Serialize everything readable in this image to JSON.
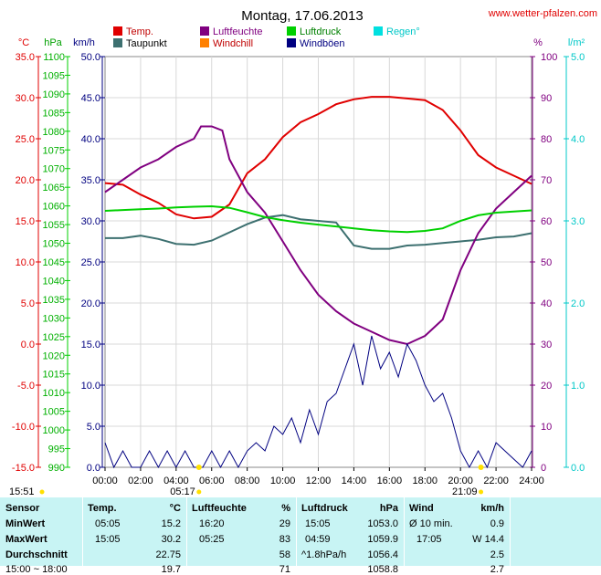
{
  "header": {
    "title": "Montag, 17.06.2013",
    "site": "www.wetter-pfalzen.com",
    "footer_left_time": "15:51"
  },
  "legend": [
    {
      "label": "Temp.",
      "color": "#e00000"
    },
    {
      "label": "Luftfeuchte",
      "color": "#800080"
    },
    {
      "label": "Luftdruck",
      "color": "#00d000"
    },
    {
      "label": "Regen°",
      "color": "#00e0e0"
    },
    {
      "label": "Taupunkt",
      "color": "#3d7070"
    },
    {
      "label": "Windchill",
      "color": "#ff8000"
    },
    {
      "label": "Windböen",
      "color": "#000080"
    }
  ],
  "units": {
    "celsius": "°C",
    "hpa": "hPa",
    "kmh": "km/h",
    "percent": "%",
    "rain": "l/m²"
  },
  "sun": {
    "sunrise": "05:17",
    "sunset": "21:09"
  },
  "chart_data": {
    "type": "line",
    "title": "Montag, 17.06.2013",
    "x_ticks": [
      "00:00",
      "02:00",
      "04:00",
      "06:00",
      "08:00",
      "10:00",
      "12:00",
      "14:00",
      "16:00",
      "18:00",
      "20:00",
      "22:00",
      "24:00"
    ],
    "axes": {
      "temperature": {
        "unit": "°C",
        "range": [
          -15,
          35
        ],
        "ticks": [
          "35.0",
          "30.0",
          "25.0",
          "20.0",
          "15.0",
          "10.0",
          "5.0",
          "0.0",
          "-5.0",
          "-10.0",
          "-15.0"
        ]
      },
      "pressure": {
        "unit": "hPa",
        "range": [
          990,
          1100
        ],
        "ticks": [
          "1100",
          "1095",
          "1090",
          "1085",
          "1080",
          "1075",
          "1070",
          "1065",
          "1060",
          "1055",
          "1050",
          "1045",
          "1040",
          "1035",
          "1030",
          "1025",
          "1020",
          "1015",
          "1010",
          "1005",
          "1000",
          "995",
          "990"
        ]
      },
      "wind": {
        "unit": "km/h",
        "range": [
          0,
          50
        ],
        "ticks": [
          "50.0",
          "45.0",
          "40.0",
          "35.0",
          "30.0",
          "25.0",
          "20.0",
          "15.0",
          "10.0",
          "5.0",
          "0.0"
        ]
      },
      "humidity": {
        "unit": "%",
        "range": [
          0,
          100
        ],
        "ticks": [
          "100",
          "90",
          "80",
          "70",
          "60",
          "50",
          "40",
          "30",
          "20",
          "10",
          "0"
        ]
      },
      "rain": {
        "unit": "l/m²",
        "range": [
          0,
          5
        ],
        "ticks": [
          "5.0",
          "4.0",
          "3.0",
          "2.0",
          "1.0",
          "0.0"
        ]
      }
    },
    "series": [
      {
        "name": "Temp.",
        "axis": "temperature",
        "color": "#e00000",
        "x": [
          0,
          1,
          2,
          3,
          4,
          5,
          6,
          7,
          8,
          9,
          10,
          11,
          12,
          13,
          14,
          15,
          16,
          17,
          18,
          19,
          20,
          21,
          22,
          23,
          24
        ],
        "y": [
          19.6,
          19.4,
          18.2,
          17.2,
          15.8,
          15.3,
          15.5,
          17.0,
          20.8,
          22.5,
          25.2,
          27.0,
          28.0,
          29.2,
          29.8,
          30.1,
          30.1,
          29.9,
          29.7,
          28.5,
          26.0,
          23.0,
          21.5,
          20.5,
          19.5
        ]
      },
      {
        "name": "Taupunkt",
        "axis": "temperature",
        "color": "#3d7070",
        "x": [
          0,
          1,
          2,
          3,
          4,
          5,
          6,
          7,
          8,
          9,
          10,
          11,
          12,
          13,
          14,
          15,
          16,
          17,
          18,
          19,
          20,
          21,
          22,
          23,
          24
        ],
        "y": [
          12.9,
          12.9,
          13.2,
          12.8,
          12.2,
          12.1,
          12.6,
          13.6,
          14.6,
          15.4,
          15.7,
          15.2,
          15.0,
          14.8,
          12.0,
          11.6,
          11.6,
          12.0,
          12.1,
          12.3,
          12.5,
          12.7,
          13.0,
          13.1,
          13.5
        ]
      },
      {
        "name": "Luftfeuchte",
        "axis": "humidity",
        "color": "#800080",
        "x": [
          0,
          1,
          2,
          3,
          4,
          5,
          5.4,
          6,
          6.6,
          7,
          8,
          9,
          10,
          11,
          12,
          13,
          14,
          15,
          16,
          17,
          18,
          19,
          20,
          21,
          22,
          23,
          24
        ],
        "y": [
          67,
          70,
          73,
          75,
          78,
          80,
          83,
          83,
          82,
          75,
          67,
          62,
          55,
          48,
          42,
          38,
          35,
          33,
          31,
          30,
          32,
          36,
          48,
          57,
          63,
          67,
          71
        ]
      },
      {
        "name": "Luftdruck",
        "axis": "pressure",
        "color": "#00d000",
        "x": [
          0,
          1,
          2,
          3,
          4,
          5,
          6,
          7,
          8,
          9,
          10,
          11,
          12,
          13,
          14,
          15,
          16,
          17,
          18,
          19,
          20,
          21,
          22,
          23,
          24
        ],
        "y": [
          1058.7,
          1058.9,
          1059.1,
          1059.3,
          1059.6,
          1059.8,
          1059.9,
          1059.5,
          1058.3,
          1057.0,
          1056.2,
          1055.5,
          1055.0,
          1054.5,
          1054.0,
          1053.5,
          1053.2,
          1053.0,
          1053.3,
          1054.0,
          1056.0,
          1057.5,
          1058.2,
          1058.5,
          1058.8
        ]
      },
      {
        "name": "Windböen",
        "axis": "wind",
        "color": "#000080",
        "x": [
          0,
          0.5,
          1,
          1.5,
          2,
          2.5,
          3,
          3.5,
          4,
          4.5,
          5,
          5.5,
          6,
          6.5,
          7,
          7.5,
          8,
          8.5,
          9,
          9.5,
          10,
          10.5,
          11,
          11.5,
          12,
          12.5,
          13,
          13.5,
          14,
          14.5,
          15,
          15.5,
          16,
          16.5,
          17,
          17.5,
          18,
          18.5,
          19,
          19.5,
          20,
          20.5,
          21,
          21.5,
          22,
          22.5,
          23,
          23.5,
          24
        ],
        "y": [
          3,
          0,
          2,
          0,
          0,
          2,
          0,
          2,
          0,
          2,
          0,
          0,
          2,
          0,
          2,
          0,
          2,
          3,
          2,
          5,
          4,
          6,
          3,
          7,
          4,
          8,
          9,
          12,
          15,
          10,
          16,
          12,
          14,
          11,
          15,
          13,
          10,
          8,
          9,
          6,
          2,
          0,
          2,
          0,
          3,
          2,
          1,
          0,
          2
        ]
      }
    ]
  },
  "stats": {
    "sensor_header": "Sensor",
    "row_labels": [
      "MinWert",
      "MaxWert",
      "Durchschnitt",
      "15:00 ~ 18:00"
    ],
    "temp": {
      "header": "Temp.",
      "unit": "°C",
      "rows": [
        {
          "time": "05:05",
          "value": "15.2"
        },
        {
          "time": "15:05",
          "value": "30.2"
        },
        {
          "time": "",
          "value": "22.75"
        },
        {
          "time": "",
          "value": "19.7"
        }
      ]
    },
    "humidity": {
      "header": "Luftfeuchte",
      "unit": "%",
      "rows": [
        {
          "time": "16:20",
          "value": "29"
        },
        {
          "time": "05:25",
          "value": "83"
        },
        {
          "time": "",
          "value": "58"
        },
        {
          "time": "",
          "value": "71"
        }
      ]
    },
    "pressure": {
      "header": "Luftdruck",
      "unit": "hPa",
      "rows": [
        {
          "time": "15:05",
          "value": "1053.0"
        },
        {
          "time": "04:59",
          "value": "1059.9"
        },
        {
          "time": "^1.8hPa/h",
          "value": "1056.4"
        },
        {
          "time": "",
          "value": "1058.8"
        }
      ]
    },
    "wind": {
      "header": "Wind",
      "unit": "km/h",
      "rows": [
        {
          "time": "Ø 10 min.",
          "value": "0.9"
        },
        {
          "time": "17:05",
          "value": "W 14.4"
        },
        {
          "time": "",
          "value": "2.5"
        },
        {
          "time": "",
          "value": "2.7"
        }
      ]
    }
  }
}
